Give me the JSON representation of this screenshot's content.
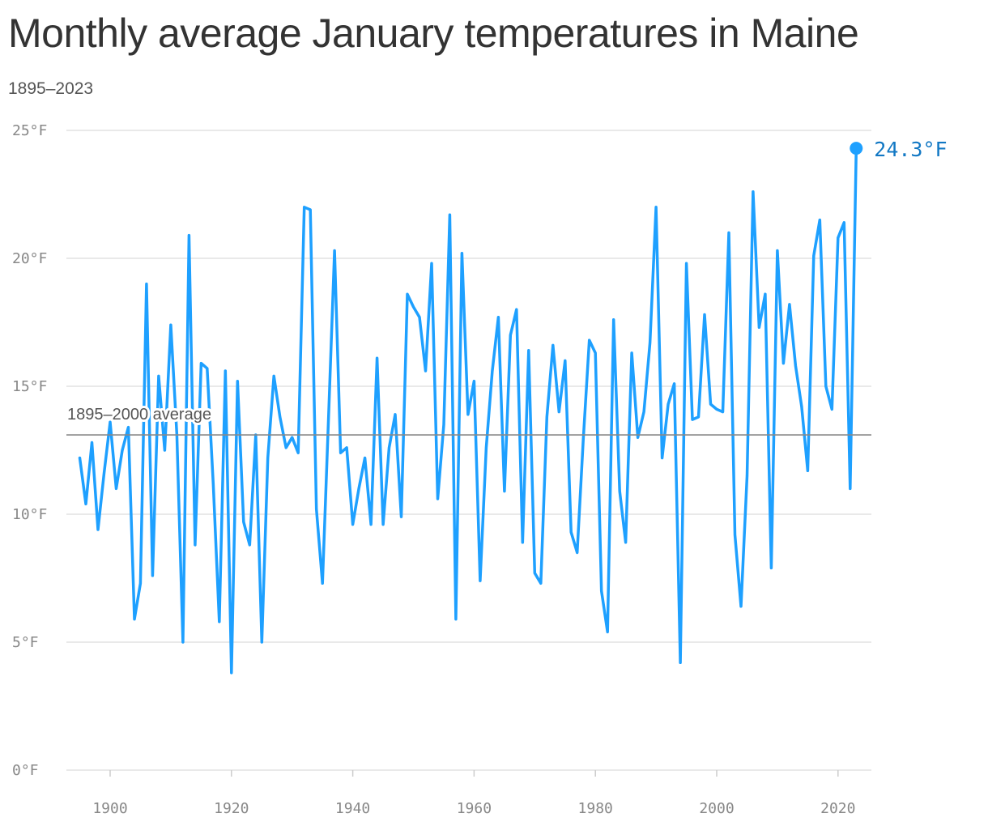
{
  "title": "Monthly average January temperatures in Maine",
  "subtitle": "1895–2023",
  "colors": {
    "series": "#1ea0ff",
    "grid": "#e2e2e2",
    "reference": "#888888",
    "end_label": "#1278c4"
  },
  "chart_data": {
    "type": "line",
    "x_ticks": [
      1900,
      1920,
      1940,
      1960,
      1980,
      2000,
      2020
    ],
    "y_ticks": [
      {
        "value": 0,
        "label": "0°F"
      },
      {
        "value": 5,
        "label": "5°F"
      },
      {
        "value": 10,
        "label": "10°F"
      },
      {
        "value": 15,
        "label": "15°F"
      },
      {
        "value": 20,
        "label": "20°F"
      },
      {
        "value": 25,
        "label": "25°F"
      }
    ],
    "xlim": [
      1890,
      2025
    ],
    "ylim": [
      0,
      25
    ],
    "grid": true,
    "reference_line": {
      "value": 13.1,
      "label": "1895–2000 average"
    },
    "end_annotation": {
      "year": 2023,
      "value": 24.3,
      "label": "24.3°F"
    },
    "x": [
      1895,
      1896,
      1897,
      1898,
      1899,
      1900,
      1901,
      1902,
      1903,
      1904,
      1905,
      1906,
      1907,
      1908,
      1909,
      1910,
      1911,
      1912,
      1913,
      1914,
      1915,
      1916,
      1917,
      1918,
      1919,
      1920,
      1921,
      1922,
      1923,
      1924,
      1925,
      1926,
      1927,
      1928,
      1929,
      1930,
      1931,
      1932,
      1933,
      1934,
      1935,
      1936,
      1937,
      1938,
      1939,
      1940,
      1941,
      1942,
      1943,
      1944,
      1945,
      1946,
      1947,
      1948,
      1949,
      1950,
      1951,
      1952,
      1953,
      1954,
      1955,
      1956,
      1957,
      1958,
      1959,
      1960,
      1961,
      1962,
      1963,
      1964,
      1965,
      1966,
      1967,
      1968,
      1969,
      1970,
      1971,
      1972,
      1973,
      1974,
      1975,
      1976,
      1977,
      1978,
      1979,
      1980,
      1981,
      1982,
      1983,
      1984,
      1985,
      1986,
      1987,
      1988,
      1989,
      1990,
      1991,
      1992,
      1993,
      1994,
      1995,
      1996,
      1997,
      1998,
      1999,
      2000,
      2001,
      2002,
      2003,
      2004,
      2005,
      2006,
      2007,
      2008,
      2009,
      2010,
      2011,
      2012,
      2013,
      2014,
      2015,
      2016,
      2017,
      2018,
      2019,
      2020,
      2021,
      2022,
      2023
    ],
    "values": [
      12.2,
      10.4,
      12.8,
      9.4,
      11.6,
      13.6,
      11.0,
      12.5,
      13.4,
      5.9,
      7.3,
      19.0,
      7.6,
      15.4,
      12.5,
      17.4,
      13.1,
      5.0,
      20.9,
      8.8,
      15.9,
      15.7,
      11.2,
      5.8,
      15.6,
      3.8,
      15.2,
      9.7,
      8.8,
      13.1,
      5.0,
      12.2,
      15.4,
      13.8,
      12.6,
      13.0,
      12.4,
      22.0,
      21.9,
      10.2,
      7.3,
      13.7,
      20.3,
      12.4,
      12.6,
      9.6,
      11.0,
      12.2,
      9.6,
      16.1,
      9.6,
      12.6,
      13.9,
      9.9,
      18.6,
      18.1,
      17.7,
      15.6,
      19.8,
      10.6,
      13.5,
      21.7,
      5.9,
      20.2,
      13.9,
      15.2,
      7.4,
      12.6,
      15.6,
      17.7,
      10.9,
      17.0,
      18.0,
      8.9,
      16.4,
      7.7,
      7.3,
      13.8,
      16.6,
      14.0,
      16.0,
      9.3,
      8.5,
      12.9,
      16.8,
      16.3,
      7.0,
      5.4,
      17.6,
      10.9,
      8.9,
      16.3,
      13.0,
      14.0,
      16.7,
      22.0,
      12.2,
      14.3,
      15.1,
      4.2,
      19.8,
      13.7,
      13.8,
      17.8,
      14.3,
      14.1,
      14.0,
      21.0,
      9.2,
      6.4,
      11.5,
      22.6,
      17.3,
      18.6,
      7.9,
      20.3,
      15.9,
      18.2,
      15.8,
      14.2,
      11.7,
      20.1,
      21.5,
      15.0,
      14.1,
      20.8,
      21.4,
      11.0,
      24.3
    ]
  }
}
